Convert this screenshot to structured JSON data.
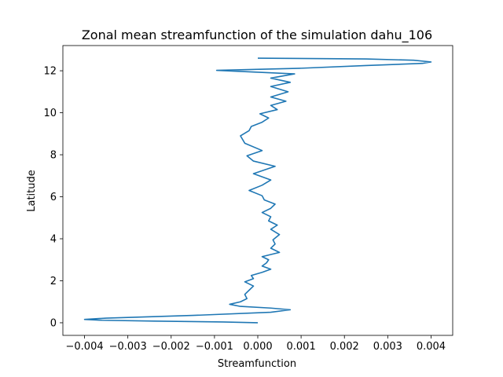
{
  "chart_data": {
    "type": "line",
    "title": "Zonal mean streamfunction of the simulation dahu_106",
    "xlabel": "Streamfunction",
    "ylabel": "Latitude",
    "xlim": [
      -0.0045,
      0.0045
    ],
    "ylim": [
      -0.6,
      13.2
    ],
    "xticks": [
      -0.004,
      -0.003,
      -0.002,
      -0.001,
      0.0,
      0.001,
      0.002,
      0.003,
      0.004
    ],
    "xtick_labels": [
      "−0.004",
      "−0.003",
      "−0.002",
      "−0.001",
      "0.000",
      "0.001",
      "0.002",
      "0.003",
      "0.004"
    ],
    "yticks": [
      0,
      2,
      4,
      6,
      8,
      10,
      12
    ],
    "ytick_labels": [
      "0",
      "2",
      "4",
      "6",
      "8",
      "10",
      "12"
    ],
    "grid": false,
    "line_color": "#1f77b4",
    "series": [
      {
        "x": [
          0.0,
          -0.0008,
          -0.0024,
          -0.0036,
          -0.004,
          -0.0035,
          -0.0015,
          0.0003,
          0.00075,
          0.0003,
          -0.0004,
          -0.00065,
          -0.0004,
          -0.00025,
          -0.0003,
          -0.0002,
          -0.0001,
          -0.0003,
          -0.0001,
          -0.00015,
          0.0001,
          0.0003,
          0.0001,
          0.0002,
          0.00025,
          0.0001,
          0.0005,
          0.0003,
          0.0004,
          0.00035,
          0.0005,
          0.0003,
          0.00045,
          0.00025,
          0.0003,
          0.0001,
          0.0003,
          0.0004,
          0.00015,
          0.0001,
          -0.0002,
          0.0001,
          0.0003,
          -0.0001,
          0.0004,
          -0.0001,
          -0.00025,
          0.0001,
          -0.0003,
          -0.0004,
          -0.0002,
          -0.00015,
          0.0001,
          0.00025,
          5e-05,
          0.00045,
          0.0003,
          0.00065,
          0.0003,
          0.0007,
          0.0003,
          0.00075,
          0.0003,
          0.00085,
          -0.0002,
          -0.00095,
          0.001,
          0.0025,
          0.0038,
          0.004,
          0.0036,
          0.0025,
          0.0
        ],
        "y": [
          0.0,
          0.04,
          0.08,
          0.12,
          0.16,
          0.22,
          0.35,
          0.5,
          0.62,
          0.7,
          0.78,
          0.88,
          1.0,
          1.15,
          1.35,
          1.55,
          1.75,
          1.95,
          2.1,
          2.25,
          2.4,
          2.55,
          2.7,
          2.85,
          3.0,
          3.15,
          3.35,
          3.55,
          3.75,
          3.95,
          4.2,
          4.45,
          4.65,
          4.85,
          5.05,
          5.25,
          5.45,
          5.65,
          5.85,
          6.05,
          6.3,
          6.55,
          6.8,
          7.1,
          7.45,
          7.7,
          7.95,
          8.2,
          8.55,
          8.9,
          9.15,
          9.35,
          9.55,
          9.75,
          9.95,
          10.15,
          10.35,
          10.55,
          10.75,
          11.0,
          11.25,
          11.45,
          11.65,
          11.85,
          11.95,
          12.02,
          12.12,
          12.25,
          12.35,
          12.42,
          12.5,
          12.56,
          12.6
        ]
      }
    ]
  }
}
